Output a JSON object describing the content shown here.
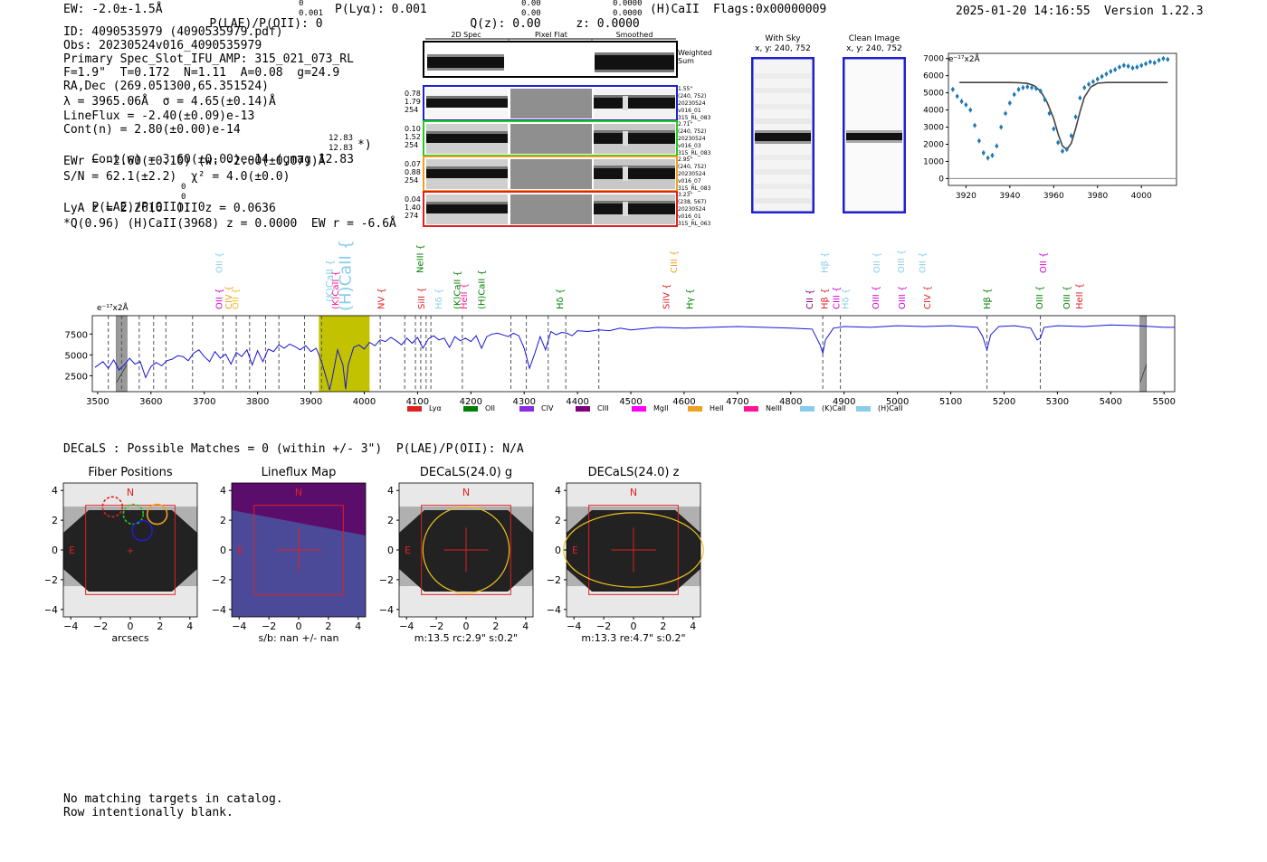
{
  "header": {
    "ew": "EW: -2.0±-1.5Å",
    "plae": "P(LAE)/P(OII): 0",
    "plae_sup": "0",
    "plae_sub": "0.001",
    "plya": "P(Lyα): 0.001",
    "qz": "Q(z): 0.00",
    "qz_sup": "0.00",
    "qz_sub": "0.00",
    "z": "z: 0.0000",
    "z_sup": "0.0000",
    "z_sub": "0.0000",
    "line": "(H)CaII",
    "flags": "Flags:0x00000009",
    "datetime": "2025-01-20 14:16:55",
    "version": "Version 1.22.3"
  },
  "info": {
    "id": "ID: 4090535979 (4090535979.pdf)",
    "obs": "Obs: 20230524v016_4090535979",
    "primary": "Primary Spec_Slot_IFU_AMP: 315_021_073_RL",
    "fit": "F=1.9\"  T=0.172  N=1.11  A=0.08  g=24.9",
    "radec": "RA,Dec (269.051300,65.351524)",
    "lambda": "λ = 3965.06Å  σ = 4.65(±0.14)Å",
    "lineflux": "LineFlux = -2.40(±0.09)e-13",
    "contn": "Cont(n) = 2.80(±0.00)e-14",
    "contw": "Cont(w) = 3.60(±0.00)e-14 (gmag 12.83",
    "contw_sup": "12.83",
    "contw_sub": "12.83",
    "contw_end": "*)",
    "ewr": "EWr = -2.60(±0.10) (w: -2.00(±0.07))Å",
    "sn": "S/N = 62.1(±2.2)  χ² = 4.0(±0.0)",
    "plae2": "P(LAE)/P(OII): 0",
    "plae2_sup": "0",
    "plae2_sub": "0",
    "lya": "LyA z = 2.2616  OII z = 0.0636",
    "q": "*Q(0.96) (H)CaII(3968) z = 0.0000  EW r = -6.6Å"
  },
  "cutouts": {
    "col_headers": [
      "2D Spec",
      "Pixel Flat",
      "Smoothed"
    ],
    "weighted_label": "Weighted Sum",
    "rows": [
      {
        "left": [
          "0.78",
          "1.79",
          "254"
        ],
        "right": [
          "1.55\"",
          "(240, 752)",
          "20230524",
          "v016_01",
          "315_RL_083"
        ],
        "color": "#1f1fd0"
      },
      {
        "left": [
          "0.10",
          "1.52",
          "254"
        ],
        "right": [
          "2.71\"",
          "(240, 752)",
          "20230524",
          "v016_03",
          "315_RL_083"
        ],
        "color": "#22cc22"
      },
      {
        "left": [
          "0.07",
          "0.88",
          "254"
        ],
        "right": [
          "2.95\"",
          "(240, 752)",
          "20230524",
          "v016_07",
          "315_RL_083"
        ],
        "color": "#f0a020"
      },
      {
        "left": [
          "0.04",
          "1.40",
          "274"
        ],
        "right": [
          "3.23\"",
          "(238, 567)",
          "20230524",
          "v016_01",
          "315_RL_063"
        ],
        "color": "#e02020"
      }
    ]
  },
  "sky": {
    "with_sky_title": "With Sky",
    "with_sky_sub": "x, y: 240, 752",
    "clean_title": "Clean Image",
    "clean_sub": "x, y: 240, 752"
  },
  "zoom_chart": {
    "type": "scatter",
    "title": "",
    "unit_label": "e⁻¹⁷x2Å",
    "xlim": [
      3912,
      4016
    ],
    "ylim": [
      -400,
      7300
    ],
    "xticks": [
      3920,
      3940,
      3960,
      3980,
      4000
    ],
    "yticks": [
      0,
      1000,
      2000,
      3000,
      4000,
      5000,
      6000,
      7000
    ],
    "points_x": [
      3914,
      3916,
      3918,
      3920,
      3922,
      3924,
      3926,
      3928,
      3930,
      3932,
      3934,
      3936,
      3938,
      3940,
      3942,
      3944,
      3946,
      3948,
      3950,
      3952,
      3954,
      3956,
      3958,
      3960,
      3962,
      3964,
      3966,
      3968,
      3970,
      3972,
      3974,
      3976,
      3978,
      3980,
      3982,
      3984,
      3986,
      3988,
      3990,
      3992,
      3994,
      3996,
      3998,
      4000,
      4002,
      4004,
      4006,
      4008,
      4010,
      4012
    ],
    "points_y": [
      5200,
      4800,
      4500,
      4300,
      4000,
      3100,
      2200,
      1500,
      1200,
      1350,
      1900,
      3000,
      3800,
      4400,
      4900,
      5200,
      5300,
      5350,
      5300,
      5250,
      5100,
      4600,
      3800,
      2900,
      2100,
      1600,
      1700,
      2500,
      3600,
      4700,
      5300,
      5500,
      5650,
      5800,
      5950,
      6100,
      6250,
      6350,
      6500,
      6600,
      6550,
      6450,
      6500,
      6600,
      6700,
      6800,
      6750,
      6900,
      7000,
      6950
    ],
    "fit_x": [
      3917,
      3940,
      3944,
      3948,
      3951,
      3954,
      3957,
      3960,
      3962,
      3964,
      3966,
      3968,
      3970,
      3972,
      3974,
      3977,
      3980,
      3984,
      4012
    ],
    "fit_y": [
      5600,
      5600,
      5590,
      5550,
      5420,
      5100,
      4450,
      3500,
      2600,
      1900,
      1700,
      2050,
      2900,
      3900,
      4750,
      5350,
      5560,
      5600,
      5600
    ]
  },
  "spectrum_chart": {
    "type": "line",
    "unit_label": "e⁻¹⁷x2Å",
    "xlim": [
      3490,
      5520
    ],
    "ylim": [
      600,
      9700
    ],
    "xticks": [
      3500,
      3600,
      3700,
      3800,
      3900,
      4000,
      4100,
      4200,
      4300,
      4400,
      4500,
      4600,
      4700,
      4800,
      4900,
      5000,
      5100,
      5200,
      5300,
      5400,
      5500
    ],
    "yticks": [
      2500,
      5000,
      7500
    ],
    "highlight_range": [
      3915,
      4010
    ],
    "masked_ranges": [
      [
        3535,
        3555
      ],
      [
        5455,
        5467
      ]
    ],
    "dashed_lines": [
      3520,
      3545,
      3578,
      3605,
      3628,
      3678,
      3735,
      3760,
      3785,
      3815,
      3840,
      3888,
      3920,
      4030,
      4076,
      4096,
      4106,
      4116,
      4125,
      4184,
      4275,
      4304,
      4345,
      4378,
      4440,
      4860,
      4893,
      5168,
      5268
    ],
    "emission_lines": [
      {
        "name": "OII",
        "x": 3727,
        "color": "#d000d0",
        "row": "low"
      },
      {
        "name": "CIV",
        "x": 3745,
        "color": "#f0a020",
        "row": "low"
      },
      {
        "name": "OII",
        "x": 3757,
        "color": "#f0c020",
        "row": "low"
      },
      {
        "name": "OII",
        "x": 3727,
        "color": "#87ceeb",
        "row": "high"
      },
      {
        "name": "(K)CaII",
        "x": 3935,
        "color": "#87ceeb",
        "row": "tall"
      },
      {
        "name": "(K)CaII",
        "x": 3945,
        "color": "#ff1493",
        "row": "low"
      },
      {
        "name": "(H)CaII",
        "x": 3968,
        "color": "#87ceeb",
        "row": "big"
      },
      {
        "name": "NV",
        "x": 4031,
        "color": "#e02020",
        "row": "low"
      },
      {
        "name": "NeIII",
        "x": 4104,
        "color": "#008000",
        "row": "high"
      },
      {
        "name": "SiII",
        "x": 4106,
        "color": "#e02020",
        "row": "low"
      },
      {
        "name": "Hδ",
        "x": 4138,
        "color": "#87ceeb",
        "row": "low"
      },
      {
        "name": "(K)CaII",
        "x": 4173,
        "color": "#008000",
        "row": "low"
      },
      {
        "name": "HeII",
        "x": 4186,
        "color": "#ff1493",
        "row": "low"
      },
      {
        "name": "(H)CaII",
        "x": 4219,
        "color": "#008000",
        "row": "low"
      },
      {
        "name": "Hδ",
        "x": 4366,
        "color": "#008000",
        "row": "low"
      },
      {
        "name": "SiIV",
        "x": 4565,
        "color": "#e02020",
        "row": "low"
      },
      {
        "name": "CIII",
        "x": 4580,
        "color": "#f0a020",
        "row": "high"
      },
      {
        "name": "Hγ",
        "x": 4609,
        "color": "#008000",
        "row": "low"
      },
      {
        "name": "CII",
        "x": 4834,
        "color": "#800080",
        "row": "low"
      },
      {
        "name": "Hβ",
        "x": 4862,
        "color": "#e02020",
        "row": "low"
      },
      {
        "name": "Hβ",
        "x": 4862,
        "color": "#87ceeb",
        "row": "high"
      },
      {
        "name": "CIII",
        "x": 4884,
        "color": "#d000d0",
        "row": "low"
      },
      {
        "name": "Hδ",
        "x": 4901,
        "color": "#87ceeb",
        "row": "low"
      },
      {
        "name": "OIII",
        "x": 4958,
        "color": "#d000d0",
        "row": "low"
      },
      {
        "name": "OII",
        "x": 4960,
        "color": "#87ceeb",
        "row": "high"
      },
      {
        "name": "OIII",
        "x": 5007,
        "color": "#d000d0",
        "row": "low"
      },
      {
        "name": "OIII",
        "x": 5006,
        "color": "#87ceeb",
        "row": "high"
      },
      {
        "name": "CIV",
        "x": 5055,
        "color": "#e02020",
        "row": "low"
      },
      {
        "name": "OII",
        "x": 5046,
        "color": "#87ceeb",
        "row": "high"
      },
      {
        "name": "Hβ",
        "x": 5167,
        "color": "#008000",
        "row": "low"
      },
      {
        "name": "OIII",
        "x": 5265,
        "color": "#008000",
        "row": "low"
      },
      {
        "name": "OII",
        "x": 5272,
        "color": "#d000d0",
        "row": "high"
      },
      {
        "name": "OIII",
        "x": 5316,
        "color": "#008000",
        "row": "low"
      },
      {
        "name": "HeII",
        "x": 5340,
        "color": "#e02020",
        "row": "low"
      }
    ],
    "spectrum_x": [
      3495,
      3510,
      3520,
      3530,
      3540,
      3550,
      3560,
      3570,
      3580,
      3590,
      3600,
      3610,
      3620,
      3630,
      3640,
      3650,
      3660,
      3670,
      3680,
      3690,
      3700,
      3710,
      3720,
      3730,
      3740,
      3750,
      3760,
      3770,
      3780,
      3790,
      3800,
      3810,
      3820,
      3830,
      3840,
      3850,
      3860,
      3870,
      3880,
      3890,
      3900,
      3910,
      3920,
      3930,
      3935,
      3940,
      3950,
      3960,
      3965,
      3970,
      3980,
      3990,
      4000,
      4010,
      4020,
      4030,
      4040,
      4050,
      4060,
      4070,
      4080,
      4090,
      4100,
      4110,
      4120,
      4130,
      4140,
      4150,
      4160,
      4170,
      4180,
      4190,
      4200,
      4210,
      4220,
      4230,
      4240,
      4250,
      4260,
      4270,
      4280,
      4290,
      4300,
      4310,
      4320,
      4330,
      4340,
      4350,
      4360,
      4370,
      4380,
      4390,
      4400,
      4420,
      4440,
      4460,
      4480,
      4500,
      4550,
      4600,
      4650,
      4700,
      4750,
      4800,
      4840,
      4855,
      4860,
      4865,
      4880,
      4900,
      4950,
      5000,
      5050,
      5100,
      5150,
      5160,
      5168,
      5175,
      5190,
      5220,
      5250,
      5262,
      5268,
      5275,
      5300,
      5350,
      5400,
      5450,
      5500,
      5520
    ],
    "spectrum_y": [
      3500,
      4200,
      3400,
      4400,
      3200,
      3800,
      4600,
      3900,
      4200,
      2300,
      3600,
      4100,
      3700,
      4300,
      4500,
      4900,
      4800,
      4300,
      5200,
      5600,
      4800,
      4200,
      5400,
      4600,
      5100,
      3900,
      5300,
      4800,
      5600,
      3800,
      5500,
      4200,
      5700,
      5400,
      6200,
      5800,
      6300,
      6000,
      5600,
      6100,
      5400,
      5800,
      4200,
      2000,
      800,
      2200,
      5600,
      3800,
      900,
      3800,
      5900,
      6200,
      5700,
      6500,
      6100,
      6800,
      6600,
      7100,
      6700,
      6200,
      7000,
      6400,
      7100,
      5800,
      6900,
      7300,
      6800,
      7000,
      5900,
      7200,
      6700,
      7000,
      6600,
      7300,
      5800,
      7200,
      7500,
      7600,
      7400,
      7200,
      7600,
      7300,
      5800,
      3400,
      5200,
      7200,
      5600,
      7800,
      7400,
      7700,
      7600,
      7300,
      7900,
      7800,
      8000,
      7900,
      8200,
      8000,
      8300,
      8200,
      8300,
      8400,
      8300,
      8200,
      8100,
      6200,
      5200,
      6800,
      8200,
      8400,
      8300,
      8500,
      8400,
      8500,
      8300,
      7200,
      5600,
      7400,
      8400,
      8500,
      8200,
      6800,
      7000,
      8300,
      8500,
      8400,
      8600,
      8500,
      8300,
      8300
    ]
  },
  "legend": [
    {
      "name": "Lyα",
      "color": "#e02020"
    },
    {
      "name": "OII",
      "color": "#008000"
    },
    {
      "name": "CIV",
      "color": "#8a2be2"
    },
    {
      "name": "CIII",
      "color": "#800080"
    },
    {
      "name": "MgII",
      "color": "#ff00ff"
    },
    {
      "name": "HeII",
      "color": "#f0a020"
    },
    {
      "name": "NeIII",
      "color": "#ff1493"
    },
    {
      "name": "(K)CaII",
      "color": "#87ceeb"
    },
    {
      "name": "(H)CaII",
      "color": "#87ceeb"
    }
  ],
  "decals": {
    "line": "DECaLS : Possible Matches = 0 (within +/- 3\")  P(LAE)/P(OII): N/A",
    "panels": [
      {
        "title": "Fiber Positions",
        "xlabel": "arcsecs"
      },
      {
        "title": "Lineflux Map",
        "xlabel": "s/b: nan +/- nan"
      },
      {
        "title": "DECaLS(24.0) g",
        "xlabel": "m:13.5 rc:2.9\"  s:0.2\""
      },
      {
        "title": "DECaLS(24.0) z",
        "xlabel": "m:13.3  re:4.7\"  s:0.2\""
      }
    ],
    "ticks": [
      "4",
      "2",
      "0",
      "−2",
      "−4"
    ],
    "xticks": [
      "−4",
      "−2",
      "0",
      "2",
      "4"
    ],
    "north": "N",
    "east": "E"
  },
  "footer": {
    "line1": "No matching targets in catalog.",
    "line2": "Row intentionally blank."
  }
}
